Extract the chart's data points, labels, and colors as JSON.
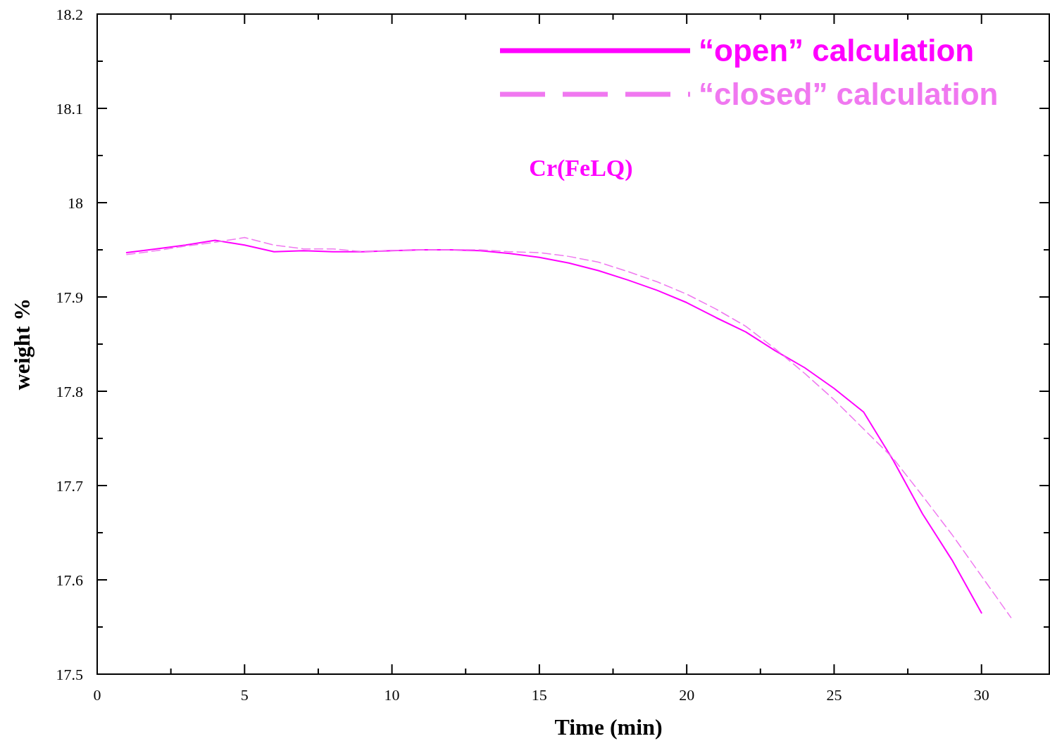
{
  "chart_data": {
    "type": "line",
    "xlabel": "Time (min)",
    "ylabel": "weight %",
    "annotations": [
      "Cr(FeLQ)"
    ],
    "xlim": [
      0,
      32.3
    ],
    "ylim": [
      17.5,
      18.2
    ],
    "xticks": [
      0,
      {
        "value": 2.5,
        "label": null
      },
      5,
      {
        "value": 7.5,
        "label": null
      },
      10,
      {
        "value": 12.5,
        "label": null
      },
      15,
      {
        "value": 17.5,
        "label": null
      },
      20,
      {
        "value": 22.5,
        "label": null
      },
      25,
      {
        "value": 27.5,
        "label": null
      },
      30
    ],
    "yticks": [
      17.5,
      {
        "value": 17.55,
        "label": null
      },
      17.6,
      {
        "value": 17.65,
        "label": null
      },
      17.7,
      {
        "value": 17.75,
        "label": null
      },
      17.8,
      {
        "value": 17.85,
        "label": null
      },
      17.9,
      {
        "value": 17.95,
        "label": null
      },
      18,
      {
        "value": 18.05,
        "label": null
      },
      18.1,
      {
        "value": 18.15,
        "label": null
      },
      18.2
    ],
    "grid": false,
    "legend": "top right",
    "marker": "none",
    "series": [
      {
        "name": "“open” calculation",
        "color": "#ff00ff",
        "line_style": "solid",
        "x": [
          1,
          2,
          3,
          4,
          5,
          6,
          7,
          8,
          9,
          10,
          11,
          12,
          13,
          14,
          15,
          16,
          17,
          18,
          19,
          20,
          21,
          22,
          23,
          24,
          25,
          26,
          27,
          28,
          29,
          30
        ],
        "values": [
          17.947,
          17.951,
          17.955,
          17.96,
          17.955,
          17.948,
          17.949,
          17.948,
          17.948,
          17.949,
          17.95,
          17.95,
          17.949,
          17.946,
          17.942,
          17.936,
          17.928,
          17.918,
          17.907,
          17.894,
          17.878,
          17.863,
          17.843,
          17.825,
          17.803,
          17.778,
          17.727,
          17.67,
          17.621,
          17.565
        ]
      },
      {
        "name": "“closed” calculation",
        "color": "#f078f0",
        "line_style": "dashed",
        "x": [
          1,
          2,
          3,
          4,
          5,
          6,
          7,
          8,
          9,
          10,
          11,
          12,
          13,
          14,
          15,
          16,
          17,
          18,
          19,
          20,
          21,
          22,
          23,
          24,
          25,
          26,
          27,
          28,
          29,
          30,
          31
        ],
        "values": [
          17.945,
          17.949,
          17.954,
          17.958,
          17.963,
          17.955,
          17.951,
          17.951,
          17.948,
          17.949,
          17.95,
          17.95,
          17.95,
          17.948,
          17.947,
          17.943,
          17.937,
          17.927,
          17.916,
          17.903,
          17.887,
          17.869,
          17.845,
          17.819,
          17.791,
          17.76,
          17.729,
          17.689,
          17.648,
          17.604,
          17.56
        ]
      }
    ]
  }
}
